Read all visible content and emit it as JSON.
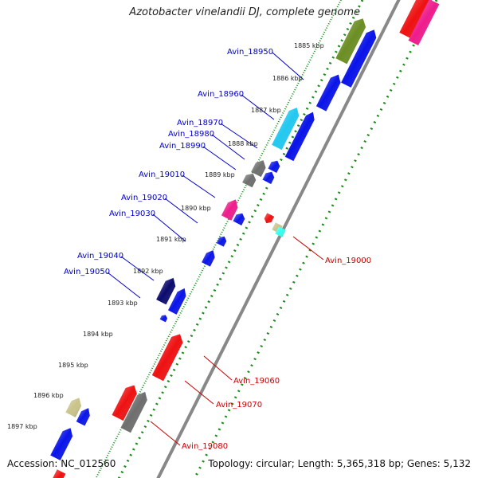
{
  "title": "Azotobacter vinelandii DJ, complete genome",
  "accession": "Accession: NC_012560",
  "topology": "Topology: circular; Length: 5,365,318 bp; Genes: 5,132",
  "colors": {
    "blue": "#0a14e8",
    "red": "#ee1111",
    "green_olive": "#6b8e23",
    "cyan": "#22c8f0",
    "gray": "#6e6e6e",
    "pink": "#ee1c8c",
    "navy": "#0b0b6e",
    "khaki": "#c9c38a",
    "aqua": "#33ffee",
    "axis": "#888888",
    "dots": "#1a8a1a",
    "label_blue": "#0000cc",
    "label_red": "#cc0000"
  },
  "kbp_marks": [
    "1885 kbp",
    "1886 kbp",
    "1887 kbp",
    "1888 kbp",
    "1889 kbp",
    "1890 kbp",
    "1891 kbp",
    "1892 kbp",
    "1893 kbp",
    "1894 kbp",
    "1895 kbp",
    "1896 kbp",
    "1897 kbp"
  ],
  "gene_labels_forward": [
    "Avin_18950",
    "Avin_18960",
    "Avin_18970",
    "Avin_18980",
    "Avin_18990",
    "Avin_19010",
    "Avin_19020",
    "Avin_19030",
    "Avin_19040",
    "Avin_19050"
  ],
  "gene_labels_reverse": [
    "Avin_19000",
    "Avin_19060",
    "Avin_19070",
    "Avin_19080"
  ]
}
